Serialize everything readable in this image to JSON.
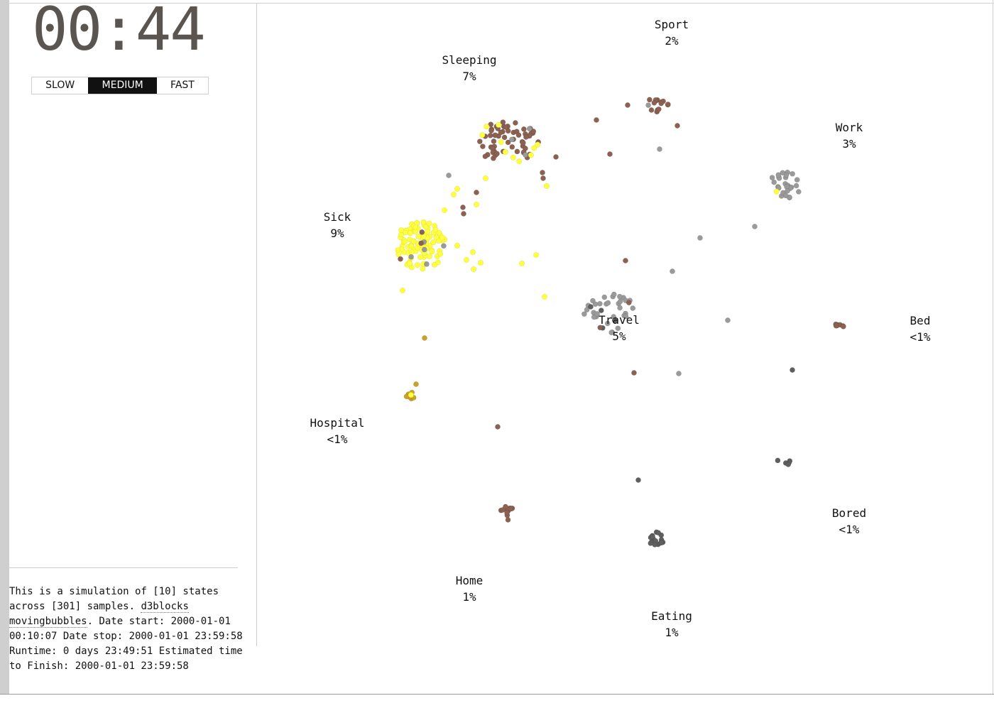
{
  "clock": {
    "time": "00:44"
  },
  "speed": {
    "options": [
      "SLOW",
      "MEDIUM",
      "FAST"
    ],
    "selected": "MEDIUM"
  },
  "info": {
    "line_a": "This is a simulation of [10] states across [301] samples. ",
    "link_text": "d3blocks movingbubbles",
    "line_b": ". Date start: 2000-01-01 00:10:07 Date stop: 2000-01-01 23:59:58 Runtime: 0 days 23:49:51 Estimated time to Finish: 2000-01-01 23:59:58"
  },
  "colors": {
    "brown": "#8c6152",
    "grey": "#9a9a9a",
    "yellow": "#ffff44",
    "dark": "#5f5f5f",
    "gold": "#c9a227"
  },
  "states": [
    {
      "id": "sport",
      "name": "Sport",
      "pct": "2%"
    },
    {
      "id": "sleeping",
      "name": "Sleeping",
      "pct": "7%"
    },
    {
      "id": "work",
      "name": "Work",
      "pct": "3%"
    },
    {
      "id": "sick",
      "name": "Sick",
      "pct": "9%"
    },
    {
      "id": "travel",
      "name": "Travel",
      "pct": "5%"
    },
    {
      "id": "bed",
      "name": "Bed",
      "pct": "<1%"
    },
    {
      "id": "hospital",
      "name": "Hospital",
      "pct": "<1%"
    },
    {
      "id": "bored",
      "name": "Bored",
      "pct": "<1%"
    },
    {
      "id": "home",
      "name": "Home",
      "pct": "1%"
    },
    {
      "id": "eating",
      "name": "Eating",
      "pct": "1%"
    }
  ]
}
